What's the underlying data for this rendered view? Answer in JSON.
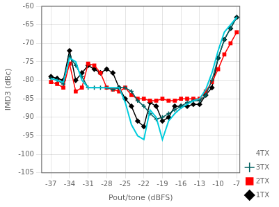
{
  "chart_data": {
    "type": "line",
    "x_label": "Pout/tone (dBFS)",
    "y_label": "IMD3 (dBc)",
    "x": [
      -37,
      -36,
      -35,
      -34,
      -33,
      -32,
      -31,
      -30,
      -29,
      -28,
      -27,
      -26,
      -25,
      -24,
      -23,
      -22,
      -21,
      -20,
      -19,
      -18,
      -17,
      -16,
      -15,
      -14,
      -13,
      -12,
      -11,
      -10,
      -9,
      -8,
      -7
    ],
    "series": [
      {
        "name": "4TX",
        "color": "#00ccdd",
        "marker": "none",
        "values": [
          -79.5,
          -80,
          -80.5,
          -74,
          -75,
          -80,
          -82,
          -82,
          -82,
          -82,
          -82,
          -82,
          -86,
          -92,
          -95,
          -96,
          -88,
          -90,
          -96,
          -91,
          -89,
          -87.5,
          -86.5,
          -85.5,
          -85,
          -82.5,
          -78,
          -72,
          -67,
          -65,
          -63
        ]
      },
      {
        "name": "3TX",
        "color": "#006060",
        "marker": "plus",
        "values": [
          -79.5,
          -80,
          -81,
          -73.5,
          -76,
          -79,
          -82,
          -82,
          -82,
          -82,
          -82.5,
          -82,
          -82,
          -83,
          -85.5,
          -87,
          -89,
          -90.5,
          -90,
          -89,
          -88,
          -87,
          -86,
          -85.5,
          -85.5,
          -84,
          -80,
          -74,
          -69,
          -66,
          -63
        ]
      },
      {
        "name": "2TX",
        "color": "#ff0000",
        "marker": "square",
        "values": [
          -80.5,
          -81,
          -82,
          -75.5,
          -83,
          -82,
          -75.5,
          -76,
          -78,
          -82,
          -82.5,
          -83,
          -82,
          -84,
          -85,
          -85,
          -85.5,
          -85.5,
          -85,
          -85.5,
          -85.5,
          -85,
          -85,
          -85,
          -85,
          -83,
          -80.5,
          -77,
          -73,
          -70,
          -67
        ]
      },
      {
        "name": "1TX",
        "color": "#000000",
        "marker": "diamond",
        "values": [
          -79,
          -79.5,
          -80,
          -72,
          -80,
          -78,
          -76,
          -77,
          -78,
          -77,
          -78,
          -82,
          -85,
          -87,
          -91,
          -92.5,
          -86,
          -87,
          -91,
          -90,
          -87,
          -87,
          -87,
          -86.5,
          -86.5,
          -84,
          -82,
          -74,
          -69,
          -66,
          -63
        ]
      }
    ],
    "xlim": [
      -38.5,
      -6.5
    ],
    "xticks": [
      -37,
      -34,
      -31,
      -28,
      -25,
      -22,
      -19,
      -16,
      -13,
      -10,
      -7
    ],
    "ylim": [
      -105,
      -60
    ],
    "yticks": [
      -105,
      -100,
      -95,
      -90,
      -85,
      -80,
      -75,
      -70,
      -65,
      -60
    ],
    "grid": true,
    "legend": "lower right"
  }
}
